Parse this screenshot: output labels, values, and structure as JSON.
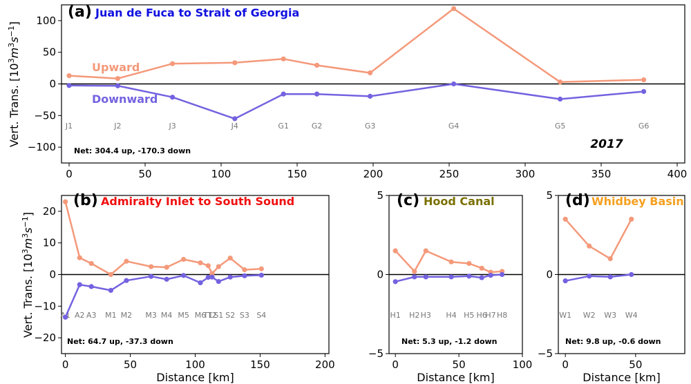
{
  "colors": {
    "upward": "#f4997a",
    "downward": "#7362e0",
    "axis": "#000000",
    "site": "#777777"
  },
  "year_label": "2017",
  "ylabel_main": "Vert. Trans. [10",
  "ylabel_sup": "3",
  "ylabel_mid": "m",
  "ylabel_sup2": "3",
  "ylabel_end": "s",
  "ylabel_sup3": "−1",
  "ylabel_close": "]",
  "chart_data": [
    {
      "id": "a",
      "type": "line",
      "panel_label": "(a)",
      "title": "Juan de Fuca to Strait of Georgia",
      "title_color": "#1010e0",
      "xlim": [
        -5,
        405
      ],
      "ylim": [
        -125,
        125
      ],
      "xticks": [
        0,
        50,
        100,
        150,
        200,
        250,
        300,
        350,
        400
      ],
      "yticks": [
        100,
        50,
        0,
        -50,
        -100
      ],
      "xlabel": "",
      "net": "Net: 304.4 up, -170.3 down",
      "series_labels": [
        "Upward",
        "Downward"
      ],
      "x": [
        0,
        32,
        68,
        109,
        141,
        163,
        198,
        253,
        323,
        378
      ],
      "sites": [
        "J1",
        "J2",
        "J3",
        "J4",
        "G1",
        "G2",
        "G3",
        "G4",
        "G5",
        "G6"
      ],
      "series": [
        {
          "name": "Upward",
          "values": [
            13,
            8.5,
            32,
            33.5,
            39.5,
            29.5,
            17.5,
            119,
            3,
            6.5
          ]
        },
        {
          "name": "Downward",
          "values": [
            -2.5,
            -3,
            -21,
            -55,
            -16,
            -16,
            -19.5,
            0,
            -24,
            -12
          ]
        }
      ]
    },
    {
      "id": "b",
      "type": "line",
      "panel_label": "(b)",
      "title": "Admiralty Inlet to South Sound",
      "title_color": "#f01010",
      "xlim": [
        -3,
        203
      ],
      "ylim": [
        -25,
        25
      ],
      "xticks": [
        0,
        50,
        100,
        150,
        200
      ],
      "yticks": [
        20,
        10,
        0,
        -10,
        -20
      ],
      "xlabel": "Distance [km]",
      "net": "Net: 64.7 up, -37.3 down",
      "x": [
        0,
        11,
        20,
        35,
        47,
        66,
        78,
        91,
        104,
        110,
        113,
        118,
        127,
        138,
        151
      ],
      "sites": [
        "A1",
        "A2",
        "A3",
        "M1",
        "M2",
        "M3",
        "M4",
        "M5",
        "M6",
        "T1",
        "T2",
        "S1",
        "S2",
        "S3",
        "S4"
      ],
      "series": [
        {
          "name": "Upward",
          "values": [
            23,
            5.3,
            3.5,
            0,
            4.2,
            2.5,
            2.3,
            4.8,
            3.7,
            2.8,
            0.3,
            2.5,
            5.2,
            1.5,
            1.8
          ]
        },
        {
          "name": "Downward",
          "values": [
            -13.5,
            -3.2,
            -3.8,
            -5,
            -1.9,
            -0.6,
            -1.5,
            -0.3,
            -2.6,
            -0.9,
            -0.8,
            -2.2,
            -0.8,
            -0.4,
            -0.2
          ]
        }
      ]
    },
    {
      "id": "c",
      "type": "line",
      "panel_label": "(c)",
      "title": "Hood Canal",
      "title_color": "#7a7000",
      "xlim": [
        -5,
        100
      ],
      "ylim": [
        -5,
        5
      ],
      "xticks": [
        0,
        50,
        100
      ],
      "yticks": [
        5,
        0,
        -5
      ],
      "xlabel": "Distance [km]",
      "net": "Net: 5.3 up, -1.2 down",
      "x": [
        0,
        15,
        24,
        44,
        58,
        68,
        75,
        84
      ],
      "sites": [
        "H1",
        "H2",
        "H3",
        "H4",
        "H5",
        "H6",
        "H7",
        "H8"
      ],
      "series": [
        {
          "name": "Upward",
          "values": [
            1.5,
            0.2,
            1.5,
            0.8,
            0.7,
            0.4,
            0.15,
            0.2
          ]
        },
        {
          "name": "Downward",
          "values": [
            -0.45,
            -0.15,
            -0.15,
            -0.15,
            -0.1,
            -0.2,
            -0.05,
            0
          ]
        }
      ]
    },
    {
      "id": "d",
      "type": "line",
      "panel_label": "(d)",
      "title": "Whidbey Basin",
      "title_color": "#f5a020",
      "xlim": [
        -5,
        85
      ],
      "ylim": [
        -5,
        5
      ],
      "xticks": [
        0,
        50
      ],
      "yticks": [
        5,
        0,
        -5
      ],
      "xlabel": "Distance [km]",
      "net": "Net: 9.8 up, -0.6 down",
      "x": [
        0,
        17,
        32,
        47
      ],
      "sites": [
        "W1",
        "W2",
        "W3",
        "W4"
      ],
      "series": [
        {
          "name": "Upward",
          "values": [
            3.5,
            1.8,
            1,
            3.5
          ]
        },
        {
          "name": "Downward",
          "values": [
            -0.4,
            -0.1,
            -0.15,
            0
          ]
        }
      ]
    }
  ]
}
